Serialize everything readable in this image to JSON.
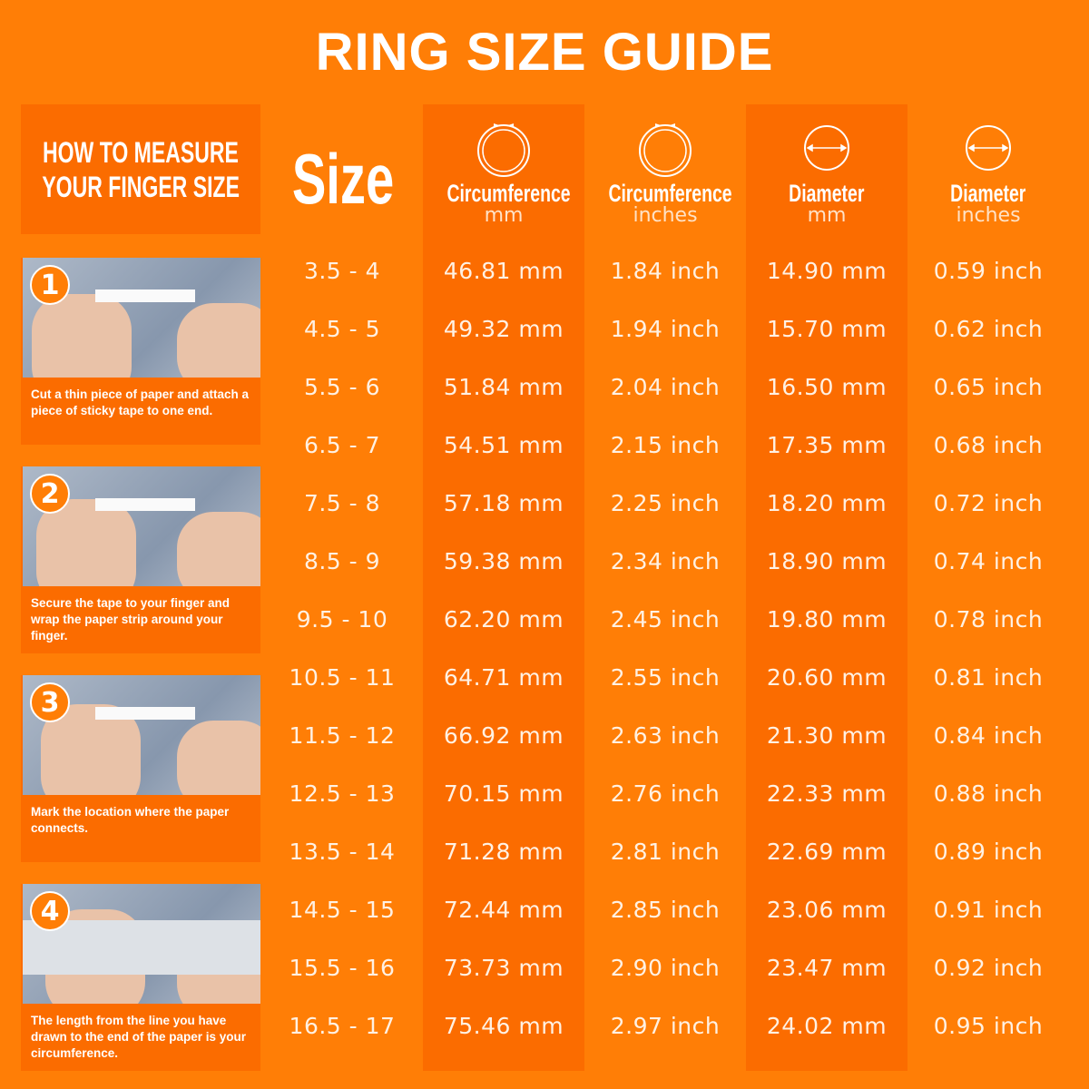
{
  "title": "RING SIZE GUIDE",
  "howto_title": [
    "HOW TO MEASURE",
    "YOUR FINGER SIZE"
  ],
  "steps": [
    {
      "number": "1",
      "caption": "Cut a thin piece of paper and attach a piece of sticky tape to one end."
    },
    {
      "number": "2",
      "caption": "Secure the tape to your finger and wrap the paper strip around your finger."
    },
    {
      "number": "3",
      "caption": "Mark the location where the paper connects."
    },
    {
      "number": "4",
      "caption": "The length from the line you have drawn to the end of the paper is your circumference."
    }
  ],
  "columns": {
    "size": "Size",
    "circ_mm": {
      "label": "Circumference",
      "unit": "mm",
      "icon": "ring-circumference-icon"
    },
    "circ_in": {
      "label": "Circumference",
      "unit": "inches",
      "icon": "ring-circumference-icon"
    },
    "diam_mm": {
      "label": "Diameter",
      "unit": "mm",
      "icon": "diameter-icon"
    },
    "diam_in": {
      "label": "Diameter",
      "unit": "inches",
      "icon": "diameter-icon"
    }
  },
  "rows": [
    [
      "3.5 - 4",
      "46.81 mm",
      "1.84 inch",
      "14.90 mm",
      "0.59 inch"
    ],
    [
      "4.5 - 5",
      "49.32 mm",
      "1.94 inch",
      "15.70 mm",
      "0.62 inch"
    ],
    [
      "5.5 - 6",
      "51.84 mm",
      "2.04 inch",
      "16.50 mm",
      "0.65 inch"
    ],
    [
      "6.5 - 7",
      "54.51 mm",
      "2.15 inch",
      "17.35 mm",
      "0.68 inch"
    ],
    [
      "7.5 - 8",
      "57.18 mm",
      "2.25 inch",
      "18.20 mm",
      "0.72 inch"
    ],
    [
      "8.5 - 9",
      "59.38 mm",
      "2.34 inch",
      "18.90 mm",
      "0.74 inch"
    ],
    [
      "9.5 - 10",
      "62.20 mm",
      "2.45 inch",
      "19.80 mm",
      "0.78 inch"
    ],
    [
      "10.5 - 11",
      "64.71 mm",
      "2.55 inch",
      "20.60 mm",
      "0.81 inch"
    ],
    [
      "11.5 - 12",
      "66.92 mm",
      "2.63 inch",
      "21.30 mm",
      "0.84 inch"
    ],
    [
      "12.5 - 13",
      "70.15 mm",
      "2.76 inch",
      "22.33 mm",
      "0.88 inch"
    ],
    [
      "13.5 - 14",
      "71.28 mm",
      "2.81 inch",
      "22.69 mm",
      "0.89 inch"
    ],
    [
      "14.5 - 15",
      "72.44 mm",
      "2.85 inch",
      "23.06 mm",
      "0.91 inch"
    ],
    [
      "15.5 - 16",
      "73.73 mm",
      "2.90 inch",
      "23.47 mm",
      "0.92 inch"
    ],
    [
      "16.5 - 17",
      "75.46 mm",
      "2.97 inch",
      "24.02 mm",
      "0.95 inch"
    ]
  ],
  "colors": {
    "background": "#ff7e06",
    "panel": "#fb6c00",
    "text": "#ffffff"
  }
}
